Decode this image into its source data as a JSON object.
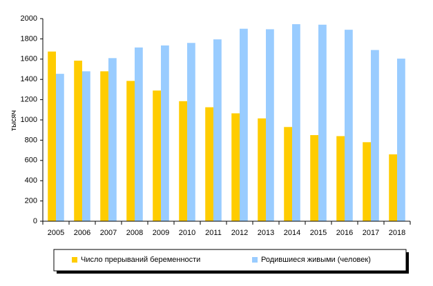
{
  "chart_data": {
    "type": "bar",
    "y_label": "тысяч",
    "categories": [
      "2005",
      "2006",
      "2007",
      "2008",
      "2009",
      "2010",
      "2011",
      "2012",
      "2013",
      "2014",
      "2015",
      "2016",
      "2017",
      "2018"
    ],
    "series": [
      {
        "name": "Число прерываний беременности",
        "color": "#ffcc00",
        "values": [
          1675,
          1585,
          1480,
          1385,
          1290,
          1185,
          1125,
          1065,
          1015,
          930,
          850,
          840,
          780,
          660
        ]
      },
      {
        "name": "Родившиеся живыми (человек)",
        "color": "#99ccff",
        "values": [
          1455,
          1480,
          1610,
          1715,
          1735,
          1760,
          1795,
          1900,
          1895,
          1945,
          1940,
          1890,
          1690,
          1605
        ]
      }
    ],
    "ylim": [
      0,
      2000
    ],
    "yticks": [
      0,
      200,
      400,
      600,
      800,
      1000,
      1200,
      1400,
      1600,
      1800,
      2000
    ],
    "grid": false,
    "legend": "bottom"
  }
}
